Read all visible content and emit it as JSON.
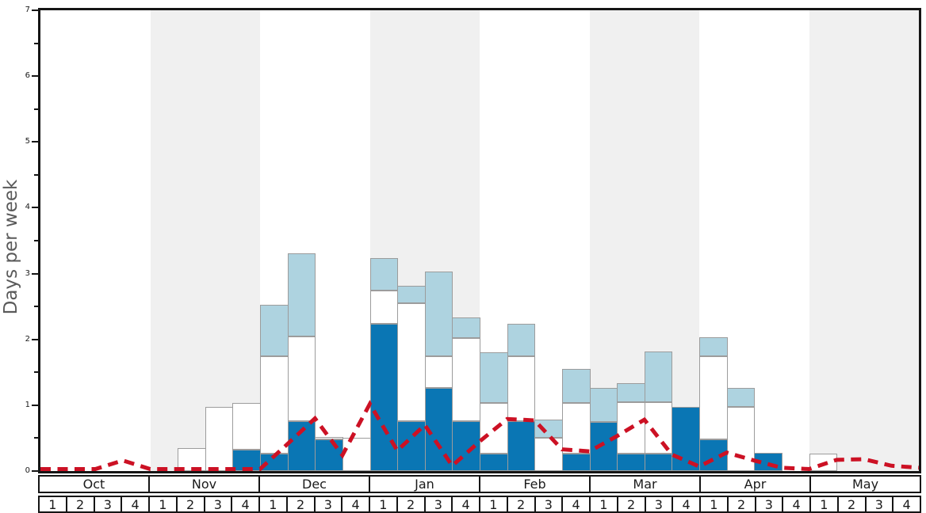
{
  "chart_data": {
    "type": "bar",
    "title": "",
    "ylabel": "Days per week",
    "xlabel": "",
    "ylim": [
      0,
      7
    ],
    "y_ticks": [
      0,
      1,
      2,
      3,
      4,
      5,
      6,
      7
    ],
    "y_minor_step": 0.5,
    "grid": "off",
    "legend": "none",
    "months": [
      "Oct",
      "Nov",
      "Dec",
      "Jan",
      "Feb",
      "Mar",
      "Apr",
      "May"
    ],
    "weeks_per_month": 4,
    "week_labels": [
      "1",
      "2",
      "3",
      "4"
    ],
    "shaded_month_indexes": [
      1,
      3,
      5,
      7
    ],
    "colors": {
      "dark_blue_bar": "#0a76b4",
      "white_bar": "#ffffff",
      "light_blue_bar": "#aed3e0",
      "bar_border": "#9c9c9c",
      "red_dashed_line": "#cc1124",
      "stripe_gray": "#f0f0f0",
      "axis_black": "#151515",
      "ylabel_gray": "#5a5a5a"
    },
    "series": [
      {
        "name": "dark-blue-days",
        "color_key": "dark_blue_bar",
        "values": [
          0,
          0,
          0,
          0,
          0,
          0,
          0,
          0.33,
          0.26,
          0.76,
          0.48,
          0,
          2.24,
          0.76,
          1.26,
          0.76,
          0.27,
          0.76,
          0,
          0.27,
          0.75,
          0.27,
          0.27,
          0.97,
          0.48,
          0,
          0.28,
          0,
          0,
          0,
          0,
          0
        ]
      },
      {
        "name": "white-days",
        "color_key": "white_bar",
        "values": [
          0,
          0,
          0,
          0,
          0,
          0.35,
          0.97,
          0.71,
          1.49,
          1.28,
          0.04,
          0.5,
          0.5,
          1.79,
          0.48,
          1.26,
          0.76,
          0.99,
          0.51,
          0.77,
          0,
          0.78,
          0.78,
          0,
          1.27,
          0.97,
          0,
          0,
          0.26,
          0,
          0,
          0
        ]
      },
      {
        "name": "light-blue-days",
        "color_key": "light_blue_bar",
        "values": [
          0,
          0,
          0,
          0,
          0,
          0,
          0,
          0,
          0.77,
          1.27,
          0,
          0,
          0.49,
          0.27,
          1.29,
          0.31,
          0.78,
          0.49,
          0.27,
          0.51,
          0.51,
          0.28,
          0.77,
          0,
          0.28,
          0.29,
          0,
          0,
          0,
          0,
          0,
          0
        ]
      }
    ],
    "line_series": {
      "name": "red-dashed-line",
      "style": "dashed",
      "color_key": "red_dashed_line",
      "x_mode": "week_boundaries",
      "values": [
        0.03,
        0.03,
        0.03,
        0.16,
        0.03,
        0.03,
        0.03,
        0.03,
        0.03,
        0.41,
        0.8,
        0.24,
        1.02,
        0.31,
        0.7,
        0.08,
        0.45,
        0.79,
        0.77,
        0.33,
        0.3,
        0.53,
        0.78,
        0.25,
        0.07,
        0.28,
        0.16,
        0.05,
        0.03,
        0.17,
        0.18,
        0.08,
        0.05
      ]
    }
  }
}
